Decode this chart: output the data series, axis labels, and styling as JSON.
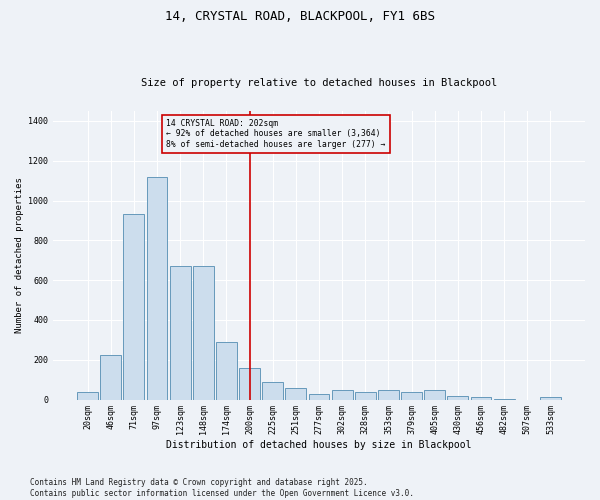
{
  "title": "14, CRYSTAL ROAD, BLACKPOOL, FY1 6BS",
  "subtitle": "Size of property relative to detached houses in Blackpool",
  "xlabel": "Distribution of detached houses by size in Blackpool",
  "ylabel": "Number of detached properties",
  "bar_color": "#ccdded",
  "bar_edge_color": "#6699bb",
  "background_color": "#eef2f7",
  "grid_color": "#ffffff",
  "categories": [
    "20sqm",
    "46sqm",
    "71sqm",
    "97sqm",
    "123sqm",
    "148sqm",
    "174sqm",
    "200sqm",
    "225sqm",
    "251sqm",
    "277sqm",
    "302sqm",
    "328sqm",
    "353sqm",
    "379sqm",
    "405sqm",
    "430sqm",
    "456sqm",
    "482sqm",
    "507sqm",
    "533sqm"
  ],
  "values": [
    40,
    225,
    930,
    1120,
    670,
    670,
    290,
    160,
    90,
    60,
    30,
    50,
    40,
    50,
    40,
    50,
    20,
    15,
    5,
    0,
    15
  ],
  "vline_x": 7,
  "vline_color": "#cc0000",
  "annotation_text": "14 CRYSTAL ROAD: 202sqm\n← 92% of detached houses are smaller (3,364)\n8% of semi-detached houses are larger (277) →",
  "annotation_box_color": "#cc0000",
  "ylim": [
    0,
    1450
  ],
  "yticks": [
    0,
    200,
    400,
    600,
    800,
    1000,
    1200,
    1400
  ],
  "footer": "Contains HM Land Registry data © Crown copyright and database right 2025.\nContains public sector information licensed under the Open Government Licence v3.0.",
  "title_fontsize": 9,
  "subtitle_fontsize": 7.5,
  "tick_fontsize": 6,
  "ylabel_fontsize": 6.5,
  "xlabel_fontsize": 7,
  "annotation_fontsize": 5.8,
  "footer_fontsize": 5.5
}
